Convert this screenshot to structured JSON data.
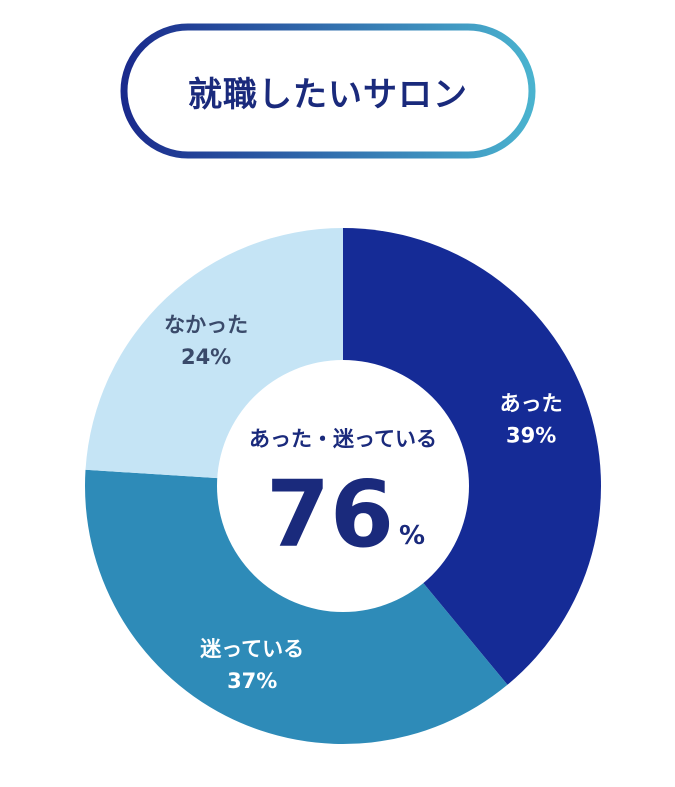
{
  "header": {
    "title": "就職したいサロン"
  },
  "chart_data": {
    "type": "pie",
    "variant": "donut",
    "categories": [
      "あった",
      "迷っている",
      "なかった"
    ],
    "values": [
      39,
      37,
      24
    ],
    "value_labels": [
      "39%",
      "37%",
      "24%"
    ],
    "colors": [
      "#152b96",
      "#2e8bb8",
      "#c5e4f5"
    ],
    "label_colors": [
      "#ffffff",
      "#ffffff",
      "#3a4a6a"
    ],
    "center_label": "あった・迷っている",
    "center_value": "76",
    "center_unit": "%"
  },
  "colors": {
    "title_text": "#1a2a7c",
    "pill_gradient_start": "#1a2a8c",
    "pill_gradient_end": "#4ab3cf",
    "center_text": "#1a2a7c"
  }
}
